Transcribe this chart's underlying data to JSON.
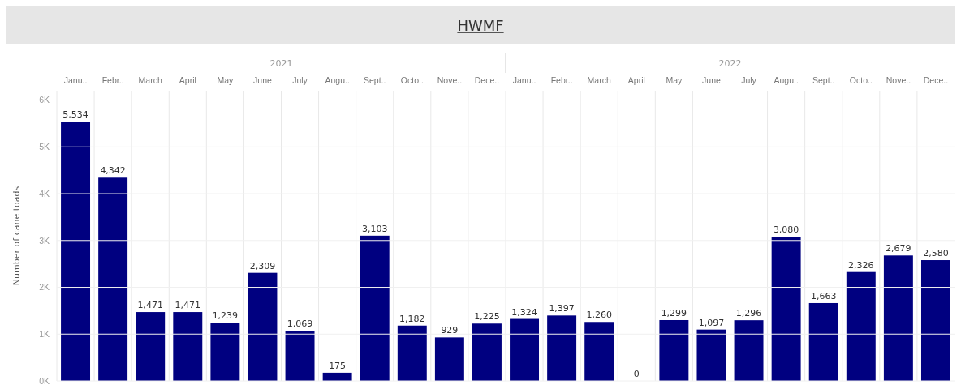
{
  "chart_data": {
    "type": "bar",
    "title": "HWMF",
    "ylabel": "Number of cane toads",
    "categories": [
      "Janu..",
      "Febr..",
      "March",
      "April",
      "May",
      "June",
      "July",
      "Augu..",
      "Sept..",
      "Octo..",
      "Nove..",
      "Dece..",
      "Janu..",
      "Febr..",
      "March",
      "April",
      "May",
      "June",
      "July",
      "Augu..",
      "Sept..",
      "Octo..",
      "Nove..",
      "Dece.."
    ],
    "annotations": [
      "2021",
      "2022"
    ],
    "values": [
      5534,
      4342,
      1471,
      1471,
      1239,
      2309,
      1069,
      175,
      3103,
      1182,
      929,
      1225,
      1324,
      1397,
      1260,
      0,
      1299,
      1097,
      1296,
      3080,
      1663,
      2326,
      2679,
      2580
    ],
    "value_labels": [
      "5,534",
      "4,342",
      "1,471",
      "1,471",
      "1,239",
      "2,309",
      "1,069",
      "175",
      "3,103",
      "1,182",
      "929",
      "1,225",
      "1,324",
      "1,397",
      "1,260",
      "0",
      "1,299",
      "1,097",
      "1,296",
      "3,080",
      "1,663",
      "2,326",
      "2,679",
      "2,580"
    ],
    "color": "#000080",
    "grid": true,
    "ylim": [
      0,
      6200
    ],
    "yticks": [
      {
        "value": 0,
        "label": "0K"
      },
      {
        "value": 1000,
        "label": "1K"
      },
      {
        "value": 2000,
        "label": "2K"
      },
      {
        "value": 3000,
        "label": "3K"
      },
      {
        "value": 4000,
        "label": "4K"
      },
      {
        "value": 5000,
        "label": "5K"
      },
      {
        "value": 6000,
        "label": "6K"
      }
    ]
  }
}
